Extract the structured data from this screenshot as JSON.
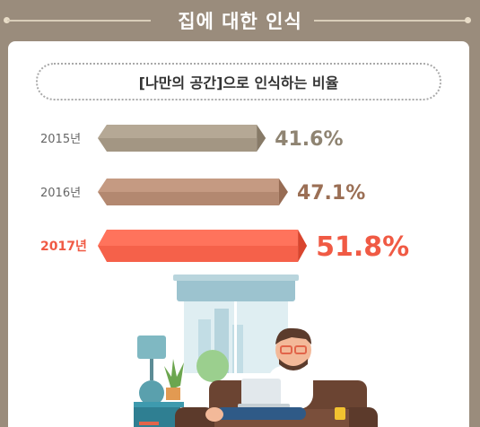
{
  "header": {
    "title": "집에 대한 인식"
  },
  "subtitle": "[나만의 공간]으로 인식하는 비율",
  "chart_data": {
    "type": "bar",
    "categories": [
      "2015년",
      "2016년",
      "2017년"
    ],
    "values": [
      41.6,
      47.1,
      51.8
    ],
    "value_labels": [
      "41.6%",
      "47.1%",
      "51.8%"
    ],
    "colors": [
      "#a39683",
      "#b38870",
      "#f5614a"
    ],
    "label_colors": [
      "#666666",
      "#666666",
      "#f05a44"
    ],
    "value_label_colors": [
      "#8f8472",
      "#9b6f55",
      "#f05a44"
    ],
    "highlight_index": 2
  }
}
